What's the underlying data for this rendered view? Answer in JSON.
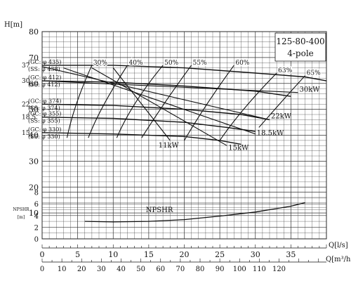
{
  "chart_data": {
    "type": "line",
    "title": "125-80-400",
    "subtitle": "4-pole",
    "ylabel": "H[m]",
    "xlabel_q": "Q[l/s]",
    "xlabel_q2": "Q[m³/h]",
    "npsh_label": [
      "NPSHR",
      "[m]"
    ],
    "ylim": [
      0,
      80
    ],
    "xlim": [
      0,
      40
    ],
    "y_ticks": [
      10,
      20,
      30,
      40,
      50,
      60,
      70,
      80
    ],
    "npsh_ticks": [
      0,
      2,
      4,
      6,
      8
    ],
    "x_ticks_ls": [
      0,
      5,
      10,
      15,
      20,
      25,
      30,
      35
    ],
    "x_ticks_m3h": [
      0,
      10,
      20,
      30,
      40,
      50,
      60,
      70,
      80,
      90,
      100,
      110,
      120
    ],
    "grid": true,
    "head_curves": [
      {
        "speed": "37",
        "diam": [
          "(GC: φ 435)",
          "(SS: φ 438)"
        ],
        "x": [
          0,
          10,
          20,
          30,
          37,
          40
        ],
        "y": [
          67,
          67,
          66,
          64,
          62.5,
          61
        ]
      },
      {
        "speed": "30",
        "diam": [
          "(GC: φ 412)",
          "(SS: φ 412)"
        ],
        "x": [
          0,
          10,
          20,
          30,
          35
        ],
        "y": [
          61,
          60.5,
          59,
          57,
          55
        ]
      },
      {
        "speed": "22",
        "diam": [
          "(GC: φ 374)",
          "(SS: φ 374)"
        ],
        "x": [
          0,
          10,
          20,
          28,
          32
        ],
        "y": [
          52,
          51.5,
          50,
          48,
          46
        ]
      },
      {
        "speed": "18.5",
        "diam": [
          "(GC: φ 355)",
          "(SS: φ 355)"
        ],
        "x": [
          0,
          10,
          20,
          26,
          30
        ],
        "y": [
          47,
          46.5,
          45,
          43,
          41.5
        ]
      },
      {
        "speed": "15",
        "diam": [
          "(GC: φ 330)",
          "(SS: φ 330)"
        ],
        "x": [
          0,
          10,
          20,
          25,
          28
        ],
        "y": [
          41,
          40.5,
          39.5,
          38,
          36.5
        ]
      }
    ],
    "power_lines": [
      {
        "label": "30kW",
        "x": [
          0,
          36
        ],
        "y": [
          61,
          56.5
        ]
      },
      {
        "label": "22kW",
        "x": [
          0,
          32
        ],
        "y": [
          66.5,
          46
        ]
      },
      {
        "label": "18.5kW",
        "x": [
          3,
          30
        ],
        "y": [
          66,
          40.5
        ]
      },
      {
        "label": "15kW",
        "x": [
          7,
          26
        ],
        "y": [
          66,
          36
        ]
      },
      {
        "label": "11kW",
        "x": [
          10,
          18
        ],
        "y": [
          66,
          38
        ]
      }
    ],
    "efficiency_curves": [
      {
        "label": "30%",
        "x": [
          7,
          4.5,
          3.5
        ],
        "y": [
          67,
          52,
          39
        ]
      },
      {
        "label": "40%",
        "x": [
          12,
          8,
          6.5
        ],
        "y": [
          67,
          50,
          39
        ]
      },
      {
        "label": "50%",
        "x": [
          17,
          12.5,
          10.5
        ],
        "y": [
          67,
          52,
          39
        ]
      },
      {
        "label": "55%",
        "x": [
          21,
          17,
          14
        ],
        "y": [
          67,
          52,
          39
        ]
      },
      {
        "label": "60%",
        "x": [
          27,
          23,
          20
        ],
        "y": [
          67,
          52,
          38
        ]
      },
      {
        "label": "63%",
        "x": [
          33,
          28,
          25
        ],
        "y": [
          64,
          50,
          38
        ]
      },
      {
        "label": "65%",
        "x": [
          37,
          34,
          30.5
        ],
        "y": [
          63,
          54,
          43
        ]
      }
    ],
    "npshr_curve": {
      "label": "NPSHR",
      "x": [
        6,
        10,
        15,
        20,
        25,
        30,
        35,
        37
      ],
      "y": [
        3,
        2.9,
        3,
        3.3,
        3.9,
        4.6,
        5.6,
        6.2
      ]
    }
  }
}
